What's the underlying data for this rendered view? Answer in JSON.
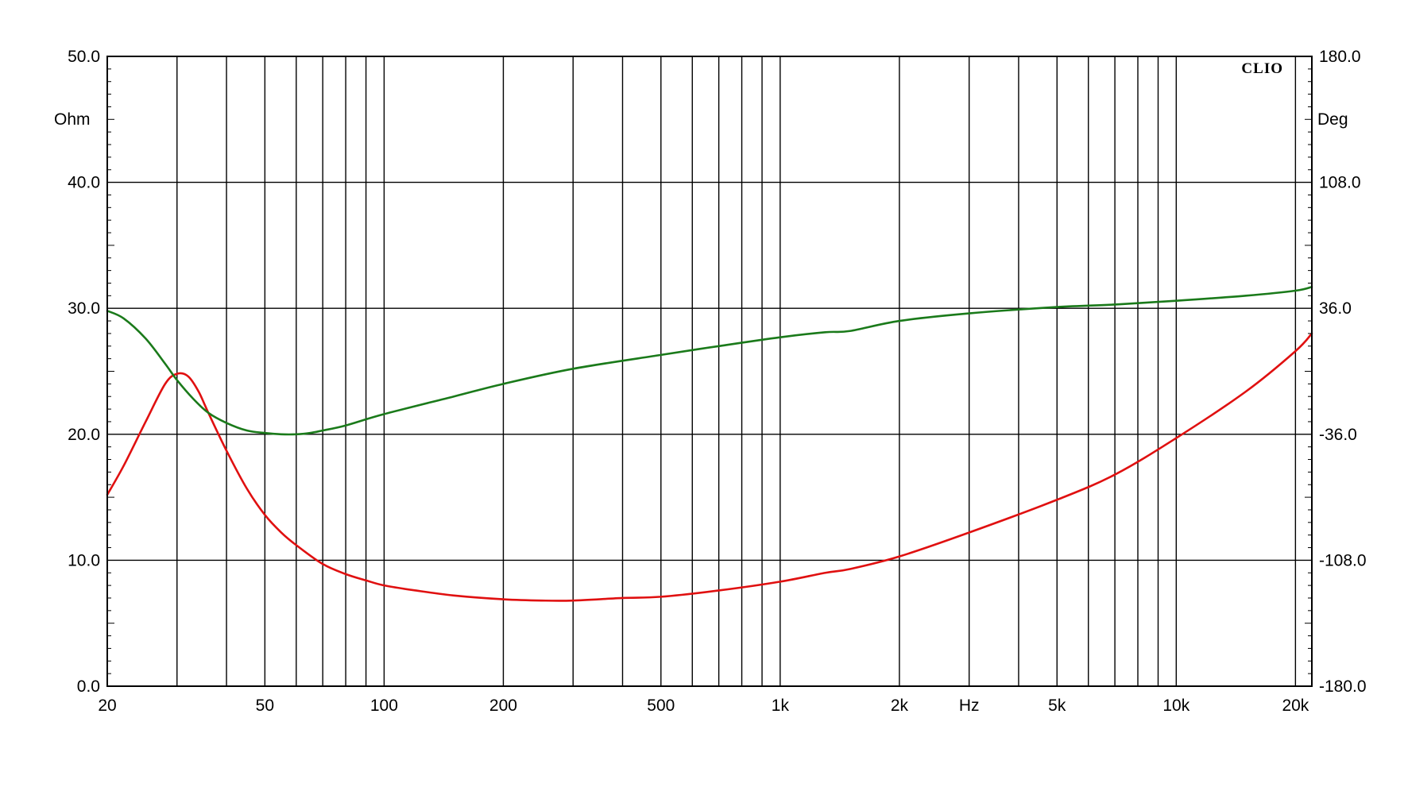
{
  "brand": "CLIO",
  "colors": {
    "impedance": "#e01010",
    "phase": "#1a7a1a",
    "grid": "#000000",
    "background": "#ffffff"
  },
  "chart_data": {
    "type": "line",
    "x_axis": {
      "scale": "log",
      "range": [
        20,
        22000
      ],
      "unit_label": "Hz",
      "ticks": [
        {
          "value": 20,
          "label": "20"
        },
        {
          "value": 50,
          "label": "50"
        },
        {
          "value": 100,
          "label": "100"
        },
        {
          "value": 200,
          "label": "200"
        },
        {
          "value": 500,
          "label": "500"
        },
        {
          "value": 1000,
          "label": "1k"
        },
        {
          "value": 2000,
          "label": "2k"
        },
        {
          "value": 5000,
          "label": "5k"
        },
        {
          "value": 10000,
          "label": "10k"
        },
        {
          "value": 20000,
          "label": "20k"
        }
      ],
      "gridlines": [
        20,
        30,
        40,
        50,
        60,
        70,
        80,
        90,
        100,
        200,
        300,
        400,
        500,
        600,
        700,
        800,
        900,
        1000,
        2000,
        3000,
        4000,
        5000,
        6000,
        7000,
        8000,
        9000,
        10000,
        20000
      ]
    },
    "y_left": {
      "unit_label": "Ohm",
      "range": [
        0,
        50
      ],
      "ticks": [
        {
          "value": 0,
          "label": "0.0"
        },
        {
          "value": 10,
          "label": "10.0"
        },
        {
          "value": 20,
          "label": "20.0"
        },
        {
          "value": 30,
          "label": "30.0"
        },
        {
          "value": 40,
          "label": "40.0"
        },
        {
          "value": 50,
          "label": "50.0"
        }
      ]
    },
    "y_right": {
      "unit_label": "Deg",
      "range": [
        -180,
        180
      ],
      "ticks": [
        {
          "value": -180,
          "label": "-180.0"
        },
        {
          "value": -108,
          "label": "-108.0"
        },
        {
          "value": -36,
          "label": "-36.0"
        },
        {
          "value": 36,
          "label": "36.0"
        },
        {
          "value": 108,
          "label": "108.0"
        },
        {
          "value": 180,
          "label": "180.0"
        }
      ]
    },
    "series": [
      {
        "axis": "left",
        "color": "#e01010",
        "x": [
          20,
          22,
          25,
          28,
          30,
          32,
          34,
          36,
          40,
          45,
          50,
          55,
          60,
          70,
          80,
          90,
          100,
          120,
          150,
          200,
          250,
          300,
          400,
          500,
          700,
          1000,
          1300,
          1500,
          2000,
          3000,
          5000,
          7000,
          10000,
          15000,
          20000,
          22000
        ],
        "y": [
          15.2,
          17.5,
          21.0,
          24.0,
          24.8,
          24.6,
          23.4,
          21.7,
          18.7,
          15.7,
          13.6,
          12.2,
          11.2,
          9.7,
          8.9,
          8.4,
          8.0,
          7.6,
          7.2,
          6.9,
          6.8,
          6.8,
          7.0,
          7.1,
          7.6,
          8.3,
          9.0,
          9.3,
          10.3,
          12.2,
          14.8,
          16.8,
          19.7,
          23.4,
          26.6,
          28.0
        ]
      },
      {
        "axis": "left",
        "color": "#1a7a1a",
        "x": [
          20,
          22,
          25,
          28,
          30,
          33,
          36,
          40,
          45,
          50,
          55,
          60,
          65,
          70,
          80,
          100,
          150,
          200,
          300,
          500,
          700,
          1000,
          1300,
          1500,
          2000,
          3000,
          5000,
          7000,
          10000,
          15000,
          20000,
          22000
        ],
        "y": [
          29.8,
          29.2,
          27.6,
          25.6,
          24.3,
          22.8,
          21.7,
          20.9,
          20.3,
          20.1,
          20.0,
          20.0,
          20.1,
          20.3,
          20.7,
          21.6,
          23.0,
          24.0,
          25.2,
          26.3,
          27.0,
          27.7,
          28.1,
          28.2,
          29.0,
          29.6,
          30.1,
          30.3,
          30.6,
          31.0,
          31.4,
          31.7
        ]
      }
    ]
  }
}
